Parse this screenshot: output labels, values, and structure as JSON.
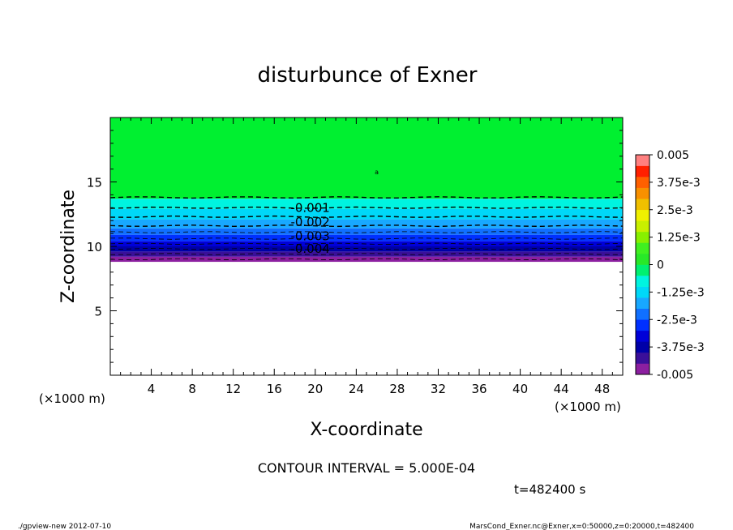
{
  "chart_data": {
    "type": "contour",
    "title": "disturbunce of Exner",
    "xlabel": "X-coordinate",
    "ylabel": "Z-coordinate",
    "x_unit": "(×1000 m)",
    "y_unit": "(×1000 m)",
    "xlim": [
      0,
      50
    ],
    "ylim": [
      0,
      20
    ],
    "x_ticks": [
      4,
      8,
      12,
      16,
      20,
      24,
      28,
      32,
      36,
      40,
      44,
      48
    ],
    "y_ticks": [
      5,
      10,
      15
    ],
    "contour_interval_text": "CONTOUR INTERVAL = 5.000E-04",
    "time_text": "t=482400 s",
    "contour_labels": [
      {
        "text": "-0.001",
        "z": 13.0
      },
      {
        "text": "-0.002",
        "z": 11.9
      },
      {
        "text": "-0.003",
        "z": 10.8
      },
      {
        "text": "-0.004",
        "z": 9.8
      }
    ],
    "small_label": {
      "text": "a",
      "x": 26,
      "z": 15.8
    },
    "colorbar": {
      "levels": [
        -0.005,
        -0.0045,
        -0.004,
        -0.0035,
        -0.003,
        -0.0025,
        -0.002,
        -0.0015,
        -0.001,
        -0.0005,
        0,
        0.0005,
        0.001,
        0.0015,
        0.002,
        0.0025,
        0.003,
        0.0035,
        0.004,
        0.0045,
        0.005
      ],
      "colors": [
        "#8c1fa0",
        "#3a0f9a",
        "#0000a8",
        "#0000d8",
        "#0030ff",
        "#1070ff",
        "#18a8ff",
        "#00d8f8",
        "#00f4e0",
        "#00f070",
        "#28e828",
        "#40f020",
        "#88f000",
        "#c8f000",
        "#f0f000",
        "#f0c000",
        "#f89000",
        "#ff6000",
        "#ff2000",
        "#ff8080"
      ],
      "tick_labels": [
        "0.005",
        "3.75e-3",
        "2.5e-3",
        "1.25e-3",
        "0",
        "-1.25e-3",
        "-2.5e-3",
        "-3.75e-3",
        "-0.005"
      ]
    },
    "bands": [
      {
        "z_low": 8.8,
        "z_high": 9.2,
        "color": "#8c1fa0"
      },
      {
        "z_low": 9.2,
        "z_high": 9.6,
        "color": "#3a0f9a"
      },
      {
        "z_low": 9.6,
        "z_high": 10.0,
        "color": "#0000a8"
      },
      {
        "z_low": 10.0,
        "z_high": 10.4,
        "color": "#0000d8"
      },
      {
        "z_low": 10.4,
        "z_high": 10.9,
        "color": "#0030ff"
      },
      {
        "z_low": 10.9,
        "z_high": 11.4,
        "color": "#1070ff"
      },
      {
        "z_low": 11.4,
        "z_high": 12.1,
        "color": "#18a8ff"
      },
      {
        "z_low": 12.1,
        "z_high": 12.9,
        "color": "#00d8f8"
      },
      {
        "z_low": 12.9,
        "z_high": 13.7,
        "color": "#00f4e0"
      },
      {
        "z_low": 13.7,
        "z_high": 20.0,
        "color": "#00f030"
      }
    ],
    "contour_lines_z": [
      9.0,
      9.4,
      9.8,
      10.2,
      10.6,
      11.1,
      11.6,
      12.3,
      13.0,
      13.8
    ]
  },
  "footer": {
    "left": "./gpview-new   2012-07-10",
    "right": "MarsCond_Exner.nc@Exner,x=0:50000,z=0:20000,t=482400"
  }
}
